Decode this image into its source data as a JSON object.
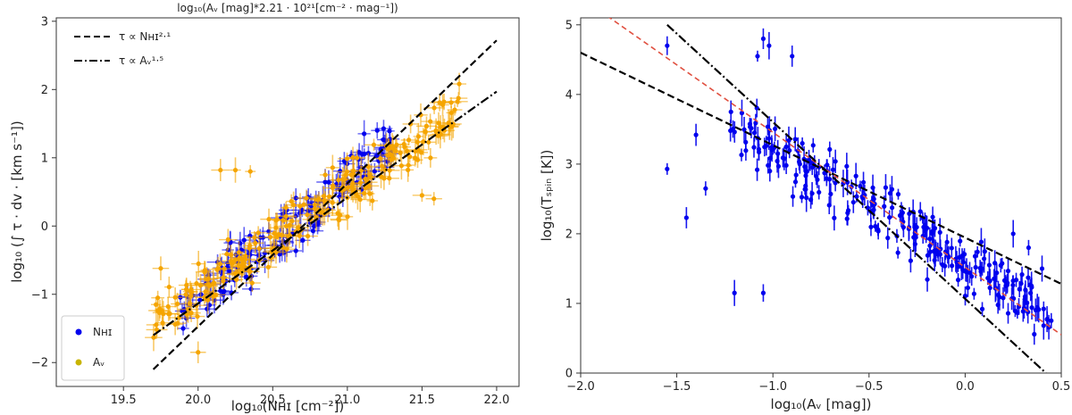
{
  "chart_data": [
    {
      "type": "scatter",
      "title": "",
      "top_axis_label": "log₁₀(Aᵥ [mag]*2.21 · 10²¹[cm⁻² · mag⁻¹])",
      "xlabel": "log₁₀(Nʜɪ  [cm⁻²])",
      "ylabel": "log₁₀ (∫ τ · dv · [km s⁻¹])",
      "xlim": [
        19.05,
        22.15
      ],
      "ylim": [
        -2.35,
        3.05
      ],
      "x_ticks": [
        "19.5",
        "20.0",
        "20.5",
        "21.0",
        "21.5",
        "22.0"
      ],
      "x_tick_values": [
        19.5,
        20.0,
        20.5,
        21.0,
        21.5,
        22.0
      ],
      "y_ticks": [
        "−2",
        "−1",
        "0",
        "1",
        "2",
        "3"
      ],
      "y_tick_values": [
        -2,
        -1,
        0,
        1,
        2,
        3
      ],
      "grid": false,
      "legend_placement": "lower-left",
      "series": [
        {
          "name": "Nʜɪ",
          "color": "#0000ee",
          "marker": "circle",
          "cloud": {
            "count": 150,
            "x_range": [
              19.85,
              21.3
            ],
            "slope": 1.75,
            "x0": 20.6,
            "y0": -0.05,
            "scatter": 0.32
          },
          "extra_points": [
            [
              19.9,
              -1.5
            ],
            [
              20.15,
              -0.95
            ],
            [
              20.2,
              -0.35
            ],
            [
              21.2,
              1.4
            ],
            [
              21.25,
              1.15
            ],
            [
              21.1,
              1.05
            ]
          ]
        },
        {
          "name": "Aᵥ",
          "color": "#f5a500",
          "marker": "circle",
          "cloud": {
            "count": 260,
            "x_range": [
              19.7,
              21.75
            ],
            "slope": 1.5,
            "x0": 20.7,
            "y0": 0.1,
            "scatter": 0.28
          },
          "extra_points": [
            [
              20.15,
              0.82
            ],
            [
              20.25,
              0.82
            ],
            [
              20.35,
              0.8
            ],
            [
              19.75,
              -0.62
            ],
            [
              20.0,
              -1.85
            ],
            [
              21.5,
              0.45
            ],
            [
              21.58,
              0.4
            ],
            [
              21.65,
              1.4
            ],
            [
              21.4,
              1.1
            ]
          ]
        }
      ],
      "fit_lines": [
        {
          "name": "τ ∝ Nʜɪ²·¹",
          "style": "dashed",
          "color": "#000000",
          "x": [
            19.7,
            22.0
          ],
          "y": [
            -2.1,
            2.72
          ]
        },
        {
          "name": "τ ∝ Aᵥ¹·⁵",
          "style": "dashdot",
          "color": "#000000",
          "x": [
            19.7,
            22.0
          ],
          "y": [
            -1.6,
            1.97
          ]
        }
      ]
    },
    {
      "type": "scatter",
      "title": "",
      "xlabel": "log₁₀(Aᵥ [mag])",
      "ylabel": "log₁₀(Tₛₚᵢₙ [K])",
      "xlim": [
        -2.0,
        0.5
      ],
      "ylim": [
        0,
        5.1
      ],
      "x_ticks": [
        "−2.0",
        "−1.5",
        "−1.0",
        "−0.5",
        "0.0",
        "0.5"
      ],
      "x_tick_values": [
        -2.0,
        -1.5,
        -1.0,
        -0.5,
        0.0,
        0.5
      ],
      "y_ticks": [
        "0",
        "1",
        "2",
        "3",
        "4",
        "5"
      ],
      "y_tick_values": [
        0,
        1,
        2,
        3,
        4,
        5
      ],
      "grid": false,
      "series": [
        {
          "name": "",
          "color": "#0000ee",
          "marker": "circle",
          "cloud": {
            "count": 260,
            "x_range": [
              -1.25,
              0.45
            ],
            "slope": -1.6,
            "x0": -0.6,
            "y0": 2.55,
            "scatter": 0.3
          },
          "extra_points": [
            [
              -1.55,
              4.7
            ],
            [
              -1.55,
              2.93
            ],
            [
              -1.45,
              2.23
            ],
            [
              -1.4,
              3.42
            ],
            [
              -1.35,
              2.65
            ],
            [
              -1.2,
              1.15
            ],
            [
              -1.05,
              1.15
            ],
            [
              -1.05,
              4.8
            ],
            [
              -1.08,
              4.55
            ],
            [
              -1.02,
              4.7
            ],
            [
              -0.9,
              4.55
            ],
            [
              0.4,
              1.5
            ],
            [
              0.33,
              1.8
            ],
            [
              0.25,
              2.0
            ]
          ]
        }
      ],
      "fit_lines": [
        {
          "name": "",
          "style": "dashed",
          "color": "#000000",
          "x": [
            -2.0,
            0.5
          ],
          "y": [
            4.6,
            1.28
          ]
        },
        {
          "name": "",
          "style": "dashed",
          "color": "#e05040",
          "x": [
            -1.9,
            0.5
          ],
          "y": [
            5.2,
            0.55
          ]
        },
        {
          "name": "",
          "style": "dashdot",
          "color": "#000000",
          "x": [
            -1.55,
            0.42
          ],
          "y": [
            5.0,
            0.0
          ]
        }
      ]
    }
  ]
}
